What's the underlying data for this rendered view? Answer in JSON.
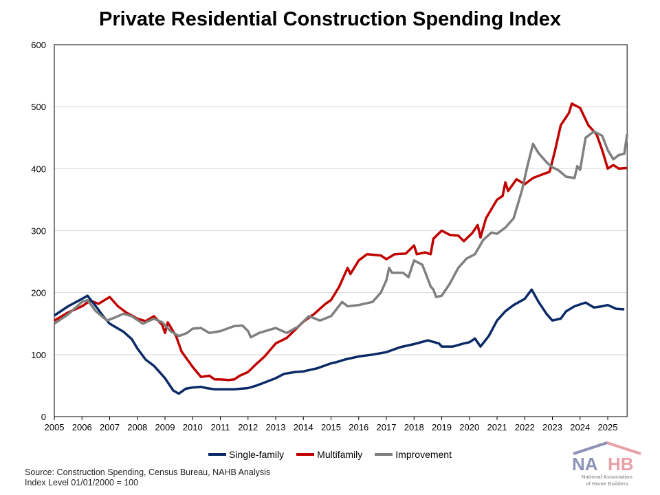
{
  "chart_data": {
    "type": "line",
    "title": "Private Residential Construction Spending Index",
    "xlabel": "",
    "ylabel": "",
    "xlim": [
      2005,
      2025.7
    ],
    "ylim": [
      0,
      600
    ],
    "yticks": [
      "0",
      "100",
      "200",
      "300",
      "400",
      "500",
      "600"
    ],
    "xticks": [
      "2005",
      "2006",
      "2007",
      "2008",
      "2009",
      "2010",
      "2011",
      "2012",
      "2013",
      "2014",
      "2015",
      "2016",
      "2017",
      "2018",
      "2019",
      "2020",
      "2021",
      "2022",
      "2023",
      "2024",
      "2025"
    ],
    "grid": true,
    "legend": "bottom",
    "series": [
      {
        "name": "Single-family",
        "color": "#0a2a66",
        "points": [
          [
            2005,
            163
          ],
          [
            2005.5,
            178
          ],
          [
            2006,
            190
          ],
          [
            2006.2,
            195
          ],
          [
            2006.5,
            178
          ],
          [
            2006.8,
            160
          ],
          [
            2007,
            150
          ],
          [
            2007.5,
            137
          ],
          [
            2007.8,
            125
          ],
          [
            2008,
            110
          ],
          [
            2008.3,
            92
          ],
          [
            2008.6,
            82
          ],
          [
            2009,
            62
          ],
          [
            2009.3,
            42
          ],
          [
            2009.5,
            37
          ],
          [
            2009.75,
            45
          ],
          [
            2010,
            47
          ],
          [
            2010.3,
            48
          ],
          [
            2010.5,
            46
          ],
          [
            2010.8,
            44
          ],
          [
            2011,
            44
          ],
          [
            2011.5,
            44
          ],
          [
            2012,
            46
          ],
          [
            2012.3,
            50
          ],
          [
            2012.6,
            55
          ],
          [
            2013,
            62
          ],
          [
            2013.3,
            69
          ],
          [
            2013.7,
            72
          ],
          [
            2014,
            73
          ],
          [
            2014.5,
            78
          ],
          [
            2015,
            86
          ],
          [
            2015.2,
            88
          ],
          [
            2015.5,
            92
          ],
          [
            2016,
            97
          ],
          [
            2016.5,
            100
          ],
          [
            2017,
            104
          ],
          [
            2017.5,
            112
          ],
          [
            2018,
            117
          ],
          [
            2018.5,
            123
          ],
          [
            2018.9,
            118
          ],
          [
            2019,
            113
          ],
          [
            2019.4,
            113
          ],
          [
            2019.8,
            118
          ],
          [
            2020,
            120
          ],
          [
            2020.2,
            126
          ],
          [
            2020.4,
            113
          ],
          [
            2020.7,
            130
          ],
          [
            2021,
            155
          ],
          [
            2021.3,
            170
          ],
          [
            2021.6,
            180
          ],
          [
            2022,
            190
          ],
          [
            2022.25,
            205
          ],
          [
            2022.5,
            185
          ],
          [
            2022.8,
            165
          ],
          [
            2023,
            155
          ],
          [
            2023.3,
            158
          ],
          [
            2023.5,
            170
          ],
          [
            2023.8,
            178
          ],
          [
            2024.2,
            184
          ],
          [
            2024.5,
            176
          ],
          [
            2024.8,
            178
          ],
          [
            2025,
            180
          ],
          [
            2025.3,
            174
          ],
          [
            2025.6,
            173
          ]
        ]
      },
      {
        "name": "Multifamily",
        "color": "#c00000",
        "points": [
          [
            2005,
            155
          ],
          [
            2005.5,
            168
          ],
          [
            2006,
            178
          ],
          [
            2006.3,
            187
          ],
          [
            2006.6,
            182
          ],
          [
            2007,
            193
          ],
          [
            2007.3,
            178
          ],
          [
            2007.6,
            168
          ],
          [
            2008,
            158
          ],
          [
            2008.3,
            154
          ],
          [
            2008.6,
            162
          ],
          [
            2008.9,
            148
          ],
          [
            2009,
            135
          ],
          [
            2009.1,
            152
          ],
          [
            2009.4,
            130
          ],
          [
            2009.6,
            105
          ],
          [
            2010,
            80
          ],
          [
            2010.3,
            64
          ],
          [
            2010.6,
            66
          ],
          [
            2010.8,
            60
          ],
          [
            2011,
            60
          ],
          [
            2011.3,
            59
          ],
          [
            2011.5,
            60
          ],
          [
            2011.7,
            66
          ],
          [
            2012,
            72
          ],
          [
            2012.3,
            85
          ],
          [
            2012.6,
            97
          ],
          [
            2013,
            118
          ],
          [
            2013.4,
            127
          ],
          [
            2013.7,
            140
          ],
          [
            2014,
            153
          ],
          [
            2014.4,
            166
          ],
          [
            2014.8,
            182
          ],
          [
            2015,
            188
          ],
          [
            2015.3,
            210
          ],
          [
            2015.6,
            240
          ],
          [
            2015.7,
            230
          ],
          [
            2016,
            252
          ],
          [
            2016.3,
            262
          ],
          [
            2016.8,
            260
          ],
          [
            2017,
            254
          ],
          [
            2017.3,
            262
          ],
          [
            2017.7,
            263
          ],
          [
            2018,
            276
          ],
          [
            2018.1,
            262
          ],
          [
            2018.4,
            265
          ],
          [
            2018.6,
            262
          ],
          [
            2018.7,
            287
          ],
          [
            2019,
            300
          ],
          [
            2019.3,
            293
          ],
          [
            2019.6,
            292
          ],
          [
            2019.8,
            283
          ],
          [
            2020.1,
            296
          ],
          [
            2020.3,
            309
          ],
          [
            2020.4,
            289
          ],
          [
            2020.6,
            320
          ],
          [
            2021,
            350
          ],
          [
            2021.2,
            356
          ],
          [
            2021.3,
            378
          ],
          [
            2021.4,
            364
          ],
          [
            2021.7,
            383
          ],
          [
            2022,
            375
          ],
          [
            2022.3,
            385
          ],
          [
            2022.6,
            390
          ],
          [
            2022.9,
            395
          ],
          [
            2023.1,
            430
          ],
          [
            2023.3,
            470
          ],
          [
            2023.6,
            490
          ],
          [
            2023.7,
            505
          ],
          [
            2024,
            498
          ],
          [
            2024.3,
            470
          ],
          [
            2024.6,
            455
          ],
          [
            2024.8,
            430
          ],
          [
            2025,
            400
          ],
          [
            2025.2,
            406
          ],
          [
            2025.4,
            400
          ],
          [
            2025.7,
            401
          ]
        ]
      },
      {
        "name": "Improvement",
        "color": "#7f7f7f",
        "points": [
          [
            2005,
            150
          ],
          [
            2005.5,
            165
          ],
          [
            2006,
            185
          ],
          [
            2006.2,
            188
          ],
          [
            2006.5,
            170
          ],
          [
            2006.9,
            155
          ],
          [
            2007.2,
            160
          ],
          [
            2007.5,
            166
          ],
          [
            2007.8,
            162
          ],
          [
            2008.2,
            150
          ],
          [
            2008.6,
            158
          ],
          [
            2008.9,
            152
          ],
          [
            2009.2,
            138
          ],
          [
            2009.5,
            130
          ],
          [
            2009.8,
            135
          ],
          [
            2010,
            142
          ],
          [
            2010.3,
            143
          ],
          [
            2010.6,
            135
          ],
          [
            2011,
            138
          ],
          [
            2011.5,
            146
          ],
          [
            2011.8,
            147
          ],
          [
            2012,
            138
          ],
          [
            2012.1,
            128
          ],
          [
            2012.4,
            135
          ],
          [
            2013,
            143
          ],
          [
            2013.4,
            135
          ],
          [
            2013.8,
            145
          ],
          [
            2014.2,
            162
          ],
          [
            2014.6,
            155
          ],
          [
            2015,
            162
          ],
          [
            2015.4,
            185
          ],
          [
            2015.6,
            178
          ],
          [
            2016,
            180
          ],
          [
            2016.5,
            185
          ],
          [
            2016.8,
            200
          ],
          [
            2017,
            220
          ],
          [
            2017.1,
            240
          ],
          [
            2017.2,
            232
          ],
          [
            2017.6,
            232
          ],
          [
            2017.8,
            225
          ],
          [
            2018,
            252
          ],
          [
            2018.3,
            245
          ],
          [
            2018.6,
            210
          ],
          [
            2018.7,
            205
          ],
          [
            2018.8,
            193
          ],
          [
            2019,
            195
          ],
          [
            2019.3,
            215
          ],
          [
            2019.6,
            240
          ],
          [
            2019.9,
            255
          ],
          [
            2020.2,
            262
          ],
          [
            2020.5,
            285
          ],
          [
            2020.8,
            297
          ],
          [
            2021,
            295
          ],
          [
            2021.3,
            305
          ],
          [
            2021.6,
            320
          ],
          [
            2021.9,
            365
          ],
          [
            2022.1,
            405
          ],
          [
            2022.3,
            440
          ],
          [
            2022.5,
            425
          ],
          [
            2022.8,
            410
          ],
          [
            2023,
            402
          ],
          [
            2023.2,
            398
          ],
          [
            2023.5,
            387
          ],
          [
            2023.8,
            385
          ],
          [
            2023.9,
            404
          ],
          [
            2024,
            398
          ],
          [
            2024.2,
            450
          ],
          [
            2024.5,
            460
          ],
          [
            2024.8,
            453
          ],
          [
            2025,
            430
          ],
          [
            2025.2,
            415
          ],
          [
            2025.4,
            422
          ],
          [
            2025.6,
            424
          ],
          [
            2025.7,
            456
          ]
        ]
      }
    ]
  },
  "footer": {
    "source": "Source: Construction Spending, Census Bureau, NAHB Analysis",
    "note": "Index Level 01/01/2000 = 100"
  },
  "logo": {
    "text": "NAHB",
    "subtitle": "National Association of Home Builders"
  }
}
